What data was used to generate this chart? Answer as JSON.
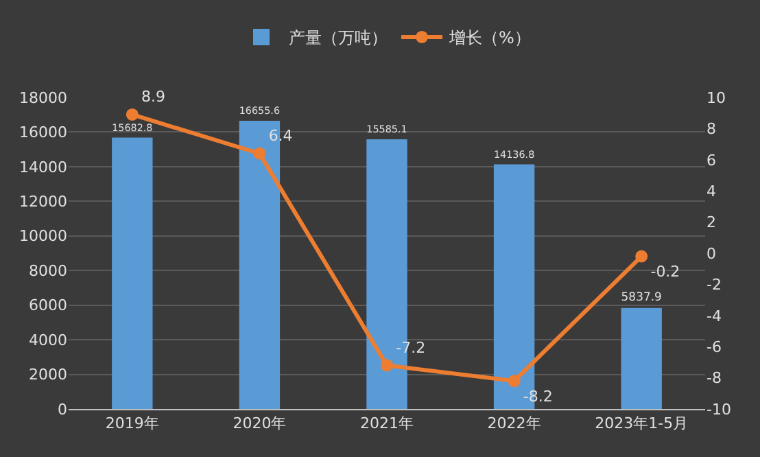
{
  "chart_data": {
    "type": "bar",
    "categories": [
      "2019年",
      "2020年",
      "2021年",
      "2022年",
      "2023年1-5月"
    ],
    "series": [
      {
        "name": "产量（万吨）",
        "color": "#5b9bd5",
        "values": [
          15682.8,
          16655.6,
          15585.1,
          14136.8,
          5837.9
        ]
      },
      {
        "name": "增长（%）",
        "type": "line",
        "axis": "y2",
        "color": "#ed7d31",
        "marker": "circle",
        "values": [
          8.9,
          6.4,
          -7.2,
          -8.2,
          -0.2
        ]
      }
    ],
    "ylim": [
      0,
      18000
    ],
    "yticks": [
      0,
      2000,
      4000,
      6000,
      8000,
      10000,
      12000,
      14000,
      16000,
      18000
    ],
    "y2lim": [
      -10,
      10
    ],
    "y2ticks": [
      -10,
      -8,
      -6,
      -4,
      -2,
      0,
      2,
      4,
      6,
      8,
      10
    ],
    "grid": "y",
    "legend": "top",
    "data_labels": true
  }
}
